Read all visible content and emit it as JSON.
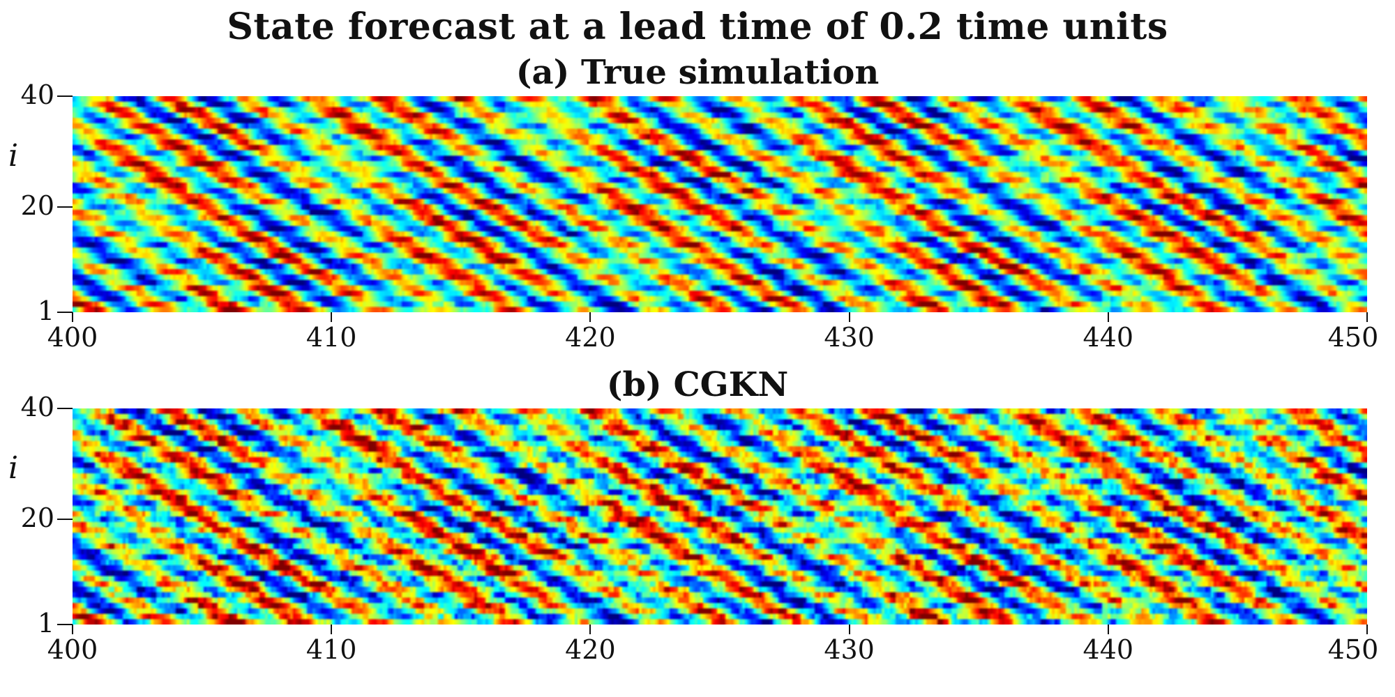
{
  "title": "State forecast at a lead time of 0.2 time units",
  "axis": {
    "ylabel": "i",
    "yticks": [
      "1",
      "20",
      "40"
    ],
    "ytick_values": [
      1,
      20,
      40
    ],
    "xticks": [
      "400",
      "410",
      "420",
      "430",
      "440",
      "450"
    ],
    "xtick_values": [
      400,
      410,
      420,
      430,
      440,
      450
    ]
  },
  "colormap": "jet",
  "chart_data": [
    {
      "type": "heatmap",
      "title": "(a) True simulation",
      "xlabel": "",
      "ylabel": "i",
      "xlim": [
        400,
        450
      ],
      "ylim": [
        1,
        40
      ],
      "grid": false
    },
    {
      "type": "heatmap",
      "title": "(b) CGKN",
      "xlabel": "",
      "ylabel": "i",
      "xlim": [
        400,
        450
      ],
      "ylim": [
        1,
        40
      ],
      "grid": false
    }
  ]
}
